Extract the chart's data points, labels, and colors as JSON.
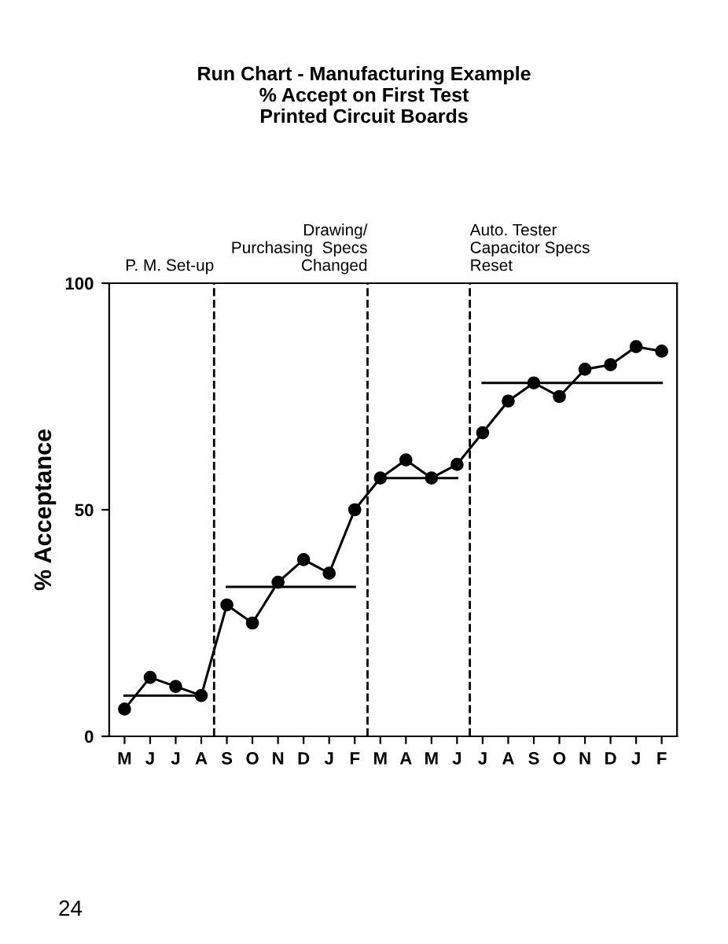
{
  "chart_data": {
    "type": "line",
    "title": "Run Chart - Manufacturing Example\n% Accept on First Test\nPrinted Circuit Boards",
    "ylabel": "% Acceptance",
    "categories": [
      "M",
      "J",
      "J",
      "A",
      "S",
      "O",
      "N",
      "D",
      "J",
      "F",
      "M",
      "A",
      "M",
      "J",
      "J",
      "A",
      "S",
      "O",
      "N",
      "D",
      "J",
      "F"
    ],
    "series": [
      {
        "color": "#000000",
        "marker": "circle",
        "values": [
          6,
          13,
          11,
          9,
          29,
          25,
          34,
          39,
          36,
          50,
          57,
          61,
          57,
          60,
          67,
          74,
          78,
          75,
          81,
          82,
          86,
          85
        ]
      },
      {
        "color": "#000000",
        "marker": "none",
        "values": [
          9,
          9,
          9,
          9,
          null,
          null,
          null,
          null,
          null,
          null,
          null,
          null,
          null,
          null,
          null,
          null,
          null,
          null,
          null,
          null,
          null,
          null
        ]
      },
      {
        "color": "#000000",
        "marker": "none",
        "values": [
          null,
          null,
          null,
          null,
          33,
          33,
          33,
          33,
          33,
          33,
          null,
          null,
          null,
          null,
          null,
          null,
          null,
          null,
          null,
          null,
          null,
          null
        ]
      },
      {
        "color": "#000000",
        "marker": "none",
        "values": [
          null,
          null,
          null,
          null,
          null,
          null,
          null,
          null,
          null,
          null,
          57,
          57,
          57,
          57,
          null,
          null,
          null,
          null,
          null,
          null,
          null,
          null
        ]
      },
      {
        "color": "#000000",
        "marker": "none",
        "values": [
          null,
          null,
          null,
          null,
          null,
          null,
          null,
          null,
          null,
          null,
          null,
          null,
          null,
          null,
          78,
          78,
          78,
          78,
          78,
          78,
          78,
          78
        ]
      }
    ],
    "ylim": [
      0,
      100
    ],
    "yticks": [
      0,
      50,
      100
    ],
    "annotations": [
      "P. M. Set-up",
      "Drawing/\nPurchasing  Specs\nChanged",
      "Auto. Tester\nCapacitor Specs\nReset",
      "24"
    ],
    "grid": false
  }
}
